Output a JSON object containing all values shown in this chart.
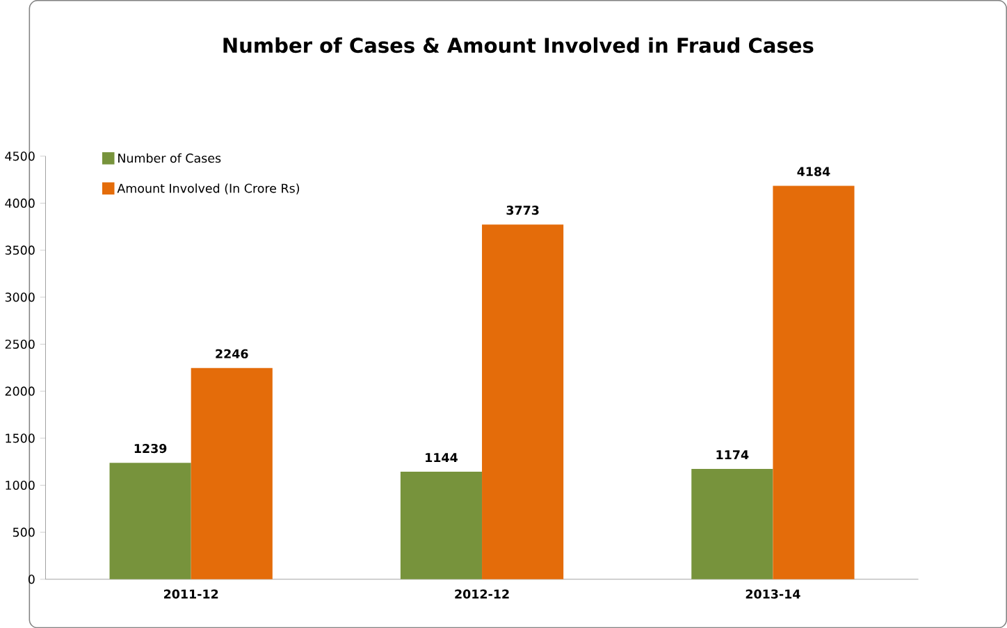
{
  "chart_data": {
    "type": "bar",
    "title": "Number of Cases & Amount Involved in Fraud Cases",
    "categories": [
      "2011-12",
      "2012-12",
      "2013-14"
    ],
    "series": [
      {
        "name": "Number of Cases",
        "color": "#77933c",
        "values": [
          1239,
          1144,
          1174
        ]
      },
      {
        "name": "Amount Involved (In Crore Rs)",
        "color": "#e46c0a",
        "values": [
          2246,
          3773,
          4184
        ]
      }
    ],
    "ylim": [
      0,
      4500
    ],
    "yticks": [
      0,
      500,
      1000,
      1500,
      2000,
      2500,
      3000,
      3500,
      4000,
      4500
    ],
    "data_labels": true,
    "legend": "top left",
    "grid": false
  }
}
